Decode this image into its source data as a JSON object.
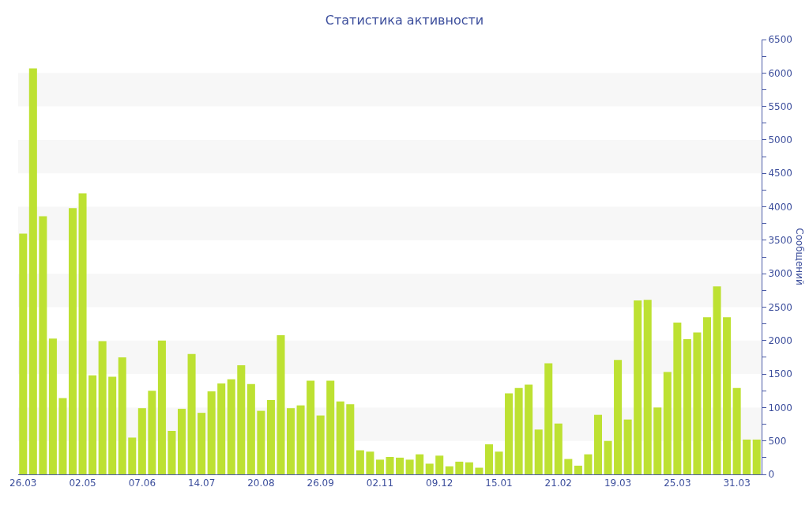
{
  "chart_data": {
    "type": "bar",
    "title": "Статистика активности",
    "ylabel": "Сообщений",
    "categories": [
      "26.03",
      null,
      null,
      null,
      null,
      null,
      "02.05",
      null,
      null,
      null,
      null,
      null,
      "07.06",
      null,
      null,
      null,
      null,
      null,
      "14.07",
      null,
      null,
      null,
      null,
      null,
      "20.08",
      null,
      null,
      null,
      null,
      null,
      "26.09",
      null,
      null,
      null,
      null,
      null,
      "02.11",
      null,
      null,
      null,
      null,
      null,
      "09.12",
      null,
      null,
      null,
      null,
      null,
      "15.01",
      null,
      null,
      null,
      null,
      null,
      "21.02",
      null,
      null,
      null,
      null,
      null,
      "19.03",
      null,
      null,
      null,
      null,
      null,
      "25.03",
      null,
      null,
      null,
      null,
      null,
      "31.03",
      null,
      null
    ],
    "values": [
      3600,
      6070,
      3860,
      2030,
      1140,
      3980,
      4200,
      1480,
      1990,
      1460,
      1750,
      550,
      990,
      1250,
      2000,
      650,
      980,
      1800,
      920,
      1240,
      1360,
      1420,
      1630,
      1350,
      950,
      1110,
      2080,
      990,
      1030,
      1400,
      880,
      1400,
      1090,
      1050,
      360,
      340,
      220,
      260,
      250,
      220,
      300,
      160,
      280,
      120,
      190,
      180,
      100,
      450,
      340,
      1210,
      1290,
      1340,
      670,
      1660,
      760,
      230,
      130,
      300,
      890,
      500,
      1710,
      820,
      2600,
      2610,
      1000,
      1530,
      2270,
      2020,
      2120,
      2350,
      2810,
      2350,
      1290,
      520,
      520
    ],
    "color": "#bde132",
    "ylim": [
      0,
      6500
    ],
    "yticks": [
      0,
      {
        "value": 250,
        "label": null
      },
      500,
      {
        "value": 750,
        "label": null
      },
      1000,
      {
        "value": 1250,
        "label": null
      },
      1500,
      {
        "value": 1750,
        "label": null
      },
      2000,
      {
        "value": 2250,
        "label": null
      },
      2500,
      {
        "value": 2750,
        "label": null
      },
      3000,
      {
        "value": 3250,
        "label": null
      },
      3500,
      {
        "value": 3750,
        "label": null
      },
      4000,
      {
        "value": 4250,
        "label": null
      },
      4500,
      {
        "value": 4750,
        "label": null
      },
      5000,
      {
        "value": 5250,
        "label": null
      },
      5500,
      {
        "value": 5750,
        "label": null
      },
      6000,
      {
        "value": 6250,
        "label": null
      },
      6500
    ],
    "bands": [
      {
        "axis": "y",
        "from": 500,
        "to": 1000,
        "color": "#f7f7f7"
      },
      {
        "axis": "y",
        "from": 1500,
        "to": 2000,
        "color": "#f7f7f7"
      },
      {
        "axis": "y",
        "from": 2500,
        "to": 3000,
        "color": "#f7f7f7"
      },
      {
        "axis": "y",
        "from": 3500,
        "to": 4000,
        "color": "#f7f7f7"
      },
      {
        "axis": "y",
        "from": 4500,
        "to": 5000,
        "color": "#f7f7f7"
      },
      {
        "axis": "y",
        "from": 5500,
        "to": 6000,
        "color": "#f7f7f7"
      }
    ]
  }
}
